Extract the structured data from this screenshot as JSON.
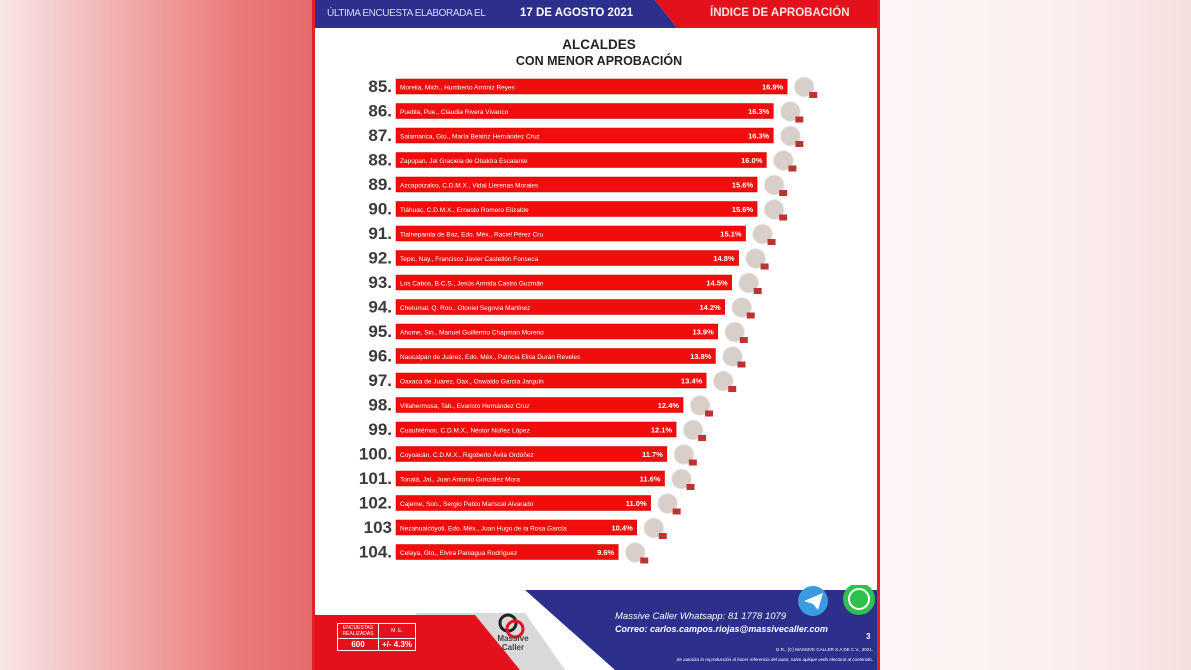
{
  "header": {
    "survey_label": "ÚLTIMA ENCUESTA ELABORADA EL",
    "survey_date": "17 DE AGOSTO 2021",
    "index_label": "ÍNDICE DE APROBACIÓN"
  },
  "colors": {
    "blue": "#2c2f8c",
    "red": "#e4101c",
    "bar": "#f20d0d"
  },
  "chart_data": {
    "type": "bar",
    "orientation": "horizontal",
    "title": "ALCALDES",
    "subtitle": "CON MENOR APROBACIÓN",
    "ranks": [
      "85.",
      "86.",
      "87.",
      "88.",
      "89.",
      "90.",
      "91.",
      "92.",
      "93.",
      "94.",
      "95.",
      "96.",
      "97.",
      "98.",
      "99.",
      "100.",
      "101.",
      "102.",
      "103",
      "104."
    ],
    "categories": [
      "Morelia, Mich., Humberto Arróniz Reyes",
      "Puebla, Pue., Claudia Rivera Vivanco",
      "Salamanca, Gto., María Beatriz Hernández Cruz",
      "Zapopan, Jal Graciela de Obaldía Escalante",
      "Azcapotzalco, C.D.M.X., Vidal Llerenas Morales",
      "Tláhuac, C.D.M.X., Ernesto Romero Elizalde",
      "Tlalnepantla de Baz, Edo. Méx., Raciel Pérez Cru",
      "Tepic, Nay., Francisco Javier Castellón Fonseca",
      "Los Cabos, B.C.S., Jesús Armida Castro Guzmán",
      "Chetumal, Q. Roo., Otoniel Segovia Martínez",
      "Ahome, Sin., Manuel Guillermo Chapman Moreno",
      "Naucalpan de Juárez, Edo. Méx., Patricia Elisa Durán Reveles",
      "Oaxaca de Juárez, Oax., Oswaldo García Jarquín",
      "Villahermosa, Tab., Evaristo Hernández Cruz",
      "Cuauhtémoc, C.D.M.X., Néstor Núñez López",
      "Coyoacán, C.D.M.X., Rigoberto Ávila Ordóñez",
      "Tonalá, Jal., Juan Antonio González Mora",
      "Cajeme, Son., Sergio Pablo Mariscal Alvarado",
      "Nezahualcóyotl, Edo. Méx., Juan Hugo de la Rosa García",
      "Celaya, Gto., Elvira Paniagua Rodríguez"
    ],
    "values": [
      16.9,
      16.3,
      16.3,
      16.0,
      15.6,
      15.6,
      15.1,
      14.8,
      14.5,
      14.2,
      13.9,
      13.8,
      13.4,
      12.4,
      12.1,
      11.7,
      11.6,
      11.0,
      10.4,
      9.6
    ],
    "value_labels": [
      "16.9%",
      "16.3%",
      "16.3%",
      "16.0%",
      "15.6%",
      "15.6%",
      "15.1%",
      "14.8%",
      "14.5%",
      "14.2%",
      "13.9%",
      "13.8%",
      "13.4%",
      "12.4%",
      "12.1%",
      "11.7%",
      "11.6%",
      "11.0%",
      "10.4%",
      "9.6%"
    ],
    "unit": "%",
    "grid": false
  },
  "footer": {
    "stats_header_1": "ENCUESTAS REALIZADAS",
    "stats_header_2": "M. E.",
    "stats_value_1": "600",
    "stats_value_2": "+/- 4.3%",
    "logo_text": "Massive Caller",
    "whatsapp_line": "Massive Caller Whatsapp: 81 1778 1079",
    "email_line": "Correo: carlos.campos.riojas@massivecaller.com",
    "page_number": "3",
    "copyright": "D.R., (C) MASSIVE CALLER S.A DE C.V., 2021.",
    "disclaimer": "Se autoriza la reproducción al hacer referencia del autor, salvo aplique veda electoral al contenido."
  }
}
